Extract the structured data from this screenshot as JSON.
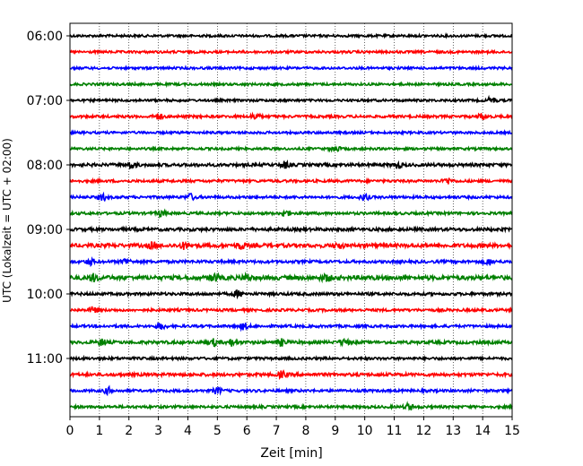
{
  "chart_data": {
    "type": "line",
    "title": "",
    "xlabel": "Zeit  [min]",
    "ylabel": "UTC (Lokalzeit = UTC + 02:00)",
    "xlim": [
      0,
      15
    ],
    "xticks": [
      0,
      1,
      2,
      3,
      4,
      5,
      6,
      7,
      8,
      9,
      10,
      11,
      12,
      13,
      14,
      15
    ],
    "xtick_labels": [
      "0",
      "1",
      "2",
      "3",
      "4",
      "5",
      "6",
      "7",
      "8",
      "9",
      "10",
      "11",
      "12",
      "13",
      "14",
      "15"
    ],
    "ytick_labels": [
      "06:00",
      "07:00",
      "08:00",
      "09:00",
      "10:00",
      "11:00"
    ],
    "ytick_rows": [
      0,
      4,
      8,
      12,
      16,
      20
    ],
    "grid_x": true,
    "grid_style": "dotted",
    "row_interval_minutes": 15,
    "series": [
      {
        "start": "06:00",
        "color": "#000000",
        "amplitude": 1.0,
        "events": []
      },
      {
        "start": "06:15",
        "color": "#ff0000",
        "amplitude": 1.0,
        "events": []
      },
      {
        "start": "06:30",
        "color": "#0000ff",
        "amplitude": 1.0,
        "events": []
      },
      {
        "start": "06:45",
        "color": "#008000",
        "amplitude": 1.0,
        "events": []
      },
      {
        "start": "07:00",
        "color": "#000000",
        "amplitude": 1.0,
        "events": [
          14.3
        ]
      },
      {
        "start": "07:15",
        "color": "#ff0000",
        "amplitude": 1.1,
        "events": [
          3.0,
          6.3,
          14.0
        ]
      },
      {
        "start": "07:30",
        "color": "#0000ff",
        "amplitude": 1.0,
        "events": []
      },
      {
        "start": "07:45",
        "color": "#008000",
        "amplitude": 1.0,
        "events": [
          9.0
        ]
      },
      {
        "start": "08:00",
        "color": "#000000",
        "amplitude": 1.3,
        "events": [
          2.1,
          7.3,
          11.1
        ]
      },
      {
        "start": "08:15",
        "color": "#ff0000",
        "amplitude": 1.1,
        "events": [
          12.8
        ]
      },
      {
        "start": "08:30",
        "color": "#0000ff",
        "amplitude": 1.1,
        "events": [
          1.1,
          4.1,
          10.0
        ]
      },
      {
        "start": "08:45",
        "color": "#008000",
        "amplitude": 1.1,
        "events": [
          3.1,
          7.3
        ]
      },
      {
        "start": "09:00",
        "color": "#000000",
        "amplitude": 1.3,
        "events": []
      },
      {
        "start": "09:15",
        "color": "#ff0000",
        "amplitude": 1.6,
        "events": [
          2.8,
          3.9,
          5.8,
          9.1
        ]
      },
      {
        "start": "09:30",
        "color": "#0000ff",
        "amplitude": 1.2,
        "events": [
          0.7,
          1.9,
          14.2
        ]
      },
      {
        "start": "09:45",
        "color": "#008000",
        "amplitude": 1.8,
        "events": [
          0.8,
          4.9,
          6.0,
          8.7
        ]
      },
      {
        "start": "10:00",
        "color": "#000000",
        "amplitude": 1.2,
        "events": [
          5.7
        ]
      },
      {
        "start": "10:15",
        "color": "#ff0000",
        "amplitude": 1.1,
        "events": [
          0.8
        ]
      },
      {
        "start": "10:30",
        "color": "#0000ff",
        "amplitude": 1.1,
        "events": [
          3.1,
          5.9
        ]
      },
      {
        "start": "10:45",
        "color": "#008000",
        "amplitude": 1.3,
        "events": [
          1.1,
          4.9,
          5.5,
          7.2,
          9.3
        ]
      },
      {
        "start": "11:00",
        "color": "#000000",
        "amplitude": 1.1,
        "events": []
      },
      {
        "start": "11:15",
        "color": "#ff0000",
        "amplitude": 1.3,
        "events": [
          7.2
        ]
      },
      {
        "start": "11:30",
        "color": "#0000ff",
        "amplitude": 1.1,
        "events": [
          1.3,
          5.0
        ]
      },
      {
        "start": "11:45",
        "color": "#008000",
        "amplitude": 1.1,
        "events": [
          11.5
        ]
      }
    ]
  }
}
